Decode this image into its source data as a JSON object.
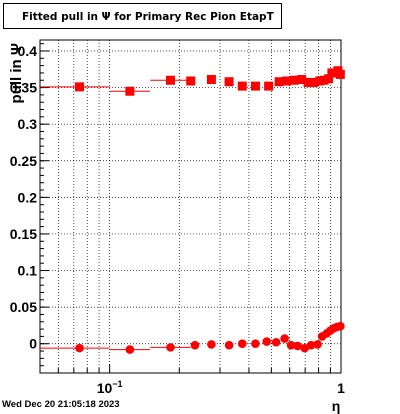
{
  "title": "Fitted pull in  Ψ  for Primary Rec Pion EtapT",
  "timestamp": "Wed Dec 20 21:05:18 2023",
  "colors": {
    "marker": "#ff0000",
    "axis": "#000000",
    "grid": "#000000"
  },
  "chart_data": {
    "type": "scatter",
    "title": "Fitted pull in  Ψ  for Primary Rec Pion EtapT",
    "xlabel": "η",
    "ylabel": "pull in  Ψ",
    "xscale": "log",
    "xlim": [
      0.05,
      1.0
    ],
    "ylim": [
      -0.04,
      0.415
    ],
    "grid": true,
    "y_ticks": [
      {
        "v": 0,
        "t": "0"
      },
      {
        "v": 0.05,
        "t": "0.05"
      },
      {
        "v": 0.1,
        "t": "0.1"
      },
      {
        "v": 0.15,
        "t": "0.15"
      },
      {
        "v": 0.2,
        "t": "0.2"
      },
      {
        "v": 0.25,
        "t": "0.25"
      },
      {
        "v": 0.3,
        "t": "0.3"
      },
      {
        "v": 0.35,
        "t": "0.35"
      },
      {
        "v": 0.4,
        "t": "0.4"
      }
    ],
    "x_ticks": [
      {
        "v": 0.1,
        "base": "10",
        "exp": "−1"
      },
      {
        "v": 1,
        "base": "1",
        "exp": ""
      }
    ],
    "series": [
      {
        "marker": "square",
        "points": [
          {
            "x": 0.0741,
            "y": 0.351,
            "xlo": 0.05,
            "xhi": 0.1
          },
          {
            "x": 0.1223,
            "y": 0.345,
            "xlo": 0.1,
            "xhi": 0.1497
          },
          {
            "x": 0.1832,
            "y": 0.36,
            "xlo": 0.1497,
            "xhi": 0.2242
          },
          {
            "x": 0.2241,
            "y": 0.359
          },
          {
            "x": 0.2753,
            "y": 0.361
          },
          {
            "x": 0.3283,
            "y": 0.358
          },
          {
            "x": 0.3743,
            "y": 0.352
          },
          {
            "x": 0.4268,
            "y": 0.352
          },
          {
            "x": 0.4866,
            "y": 0.352
          },
          {
            "x": 0.5403,
            "y": 0.358
          },
          {
            "x": 0.5822,
            "y": 0.359
          },
          {
            "x": 0.6273,
            "y": 0.36
          },
          {
            "x": 0.6759,
            "y": 0.361
          },
          {
            "x": 0.7208,
            "y": 0.357
          },
          {
            "x": 0.7633,
            "y": 0.357
          },
          {
            "x": 0.8083,
            "y": 0.359
          },
          {
            "x": 0.845,
            "y": 0.36
          },
          {
            "x": 0.8834,
            "y": 0.362
          },
          {
            "x": 0.9134,
            "y": 0.37
          },
          {
            "x": 0.9444,
            "y": 0.37
          },
          {
            "x": 0.9699,
            "y": 0.373
          },
          {
            "x": 0.9934,
            "y": 0.368
          }
        ]
      },
      {
        "marker": "circle",
        "points": [
          {
            "x": 0.0741,
            "y": -0.006,
            "xlo": 0.05,
            "xhi": 0.1
          },
          {
            "x": 0.1223,
            "y": -0.008,
            "xlo": 0.1,
            "xhi": 0.1497
          },
          {
            "x": 0.1832,
            "y": -0.005,
            "xlo": 0.1497,
            "xhi": 0.2242
          },
          {
            "x": 0.2338,
            "y": -0.002
          },
          {
            "x": 0.2753,
            "y": -0.001
          },
          {
            "x": 0.3283,
            "y": -0.002
          },
          {
            "x": 0.3743,
            "y": 0.0
          },
          {
            "x": 0.4268,
            "y": 0.0
          },
          {
            "x": 0.4775,
            "y": 0.003
          },
          {
            "x": 0.5242,
            "y": 0.002
          },
          {
            "x": 0.5708,
            "y": 0.007
          },
          {
            "x": 0.6086,
            "y": -0.002
          },
          {
            "x": 0.6489,
            "y": -0.003
          },
          {
            "x": 0.6967,
            "y": -0.006
          },
          {
            "x": 0.7427,
            "y": -0.002
          },
          {
            "x": 0.7918,
            "y": -0.001
          },
          {
            "x": 0.8287,
            "y": 0.01
          },
          {
            "x": 0.8672,
            "y": 0.014
          },
          {
            "x": 0.9004,
            "y": 0.018
          },
          {
            "x": 0.9303,
            "y": 0.021
          },
          {
            "x": 0.9624,
            "y": 0.023
          },
          {
            "x": 0.9934,
            "y": 0.024
          }
        ]
      }
    ]
  }
}
